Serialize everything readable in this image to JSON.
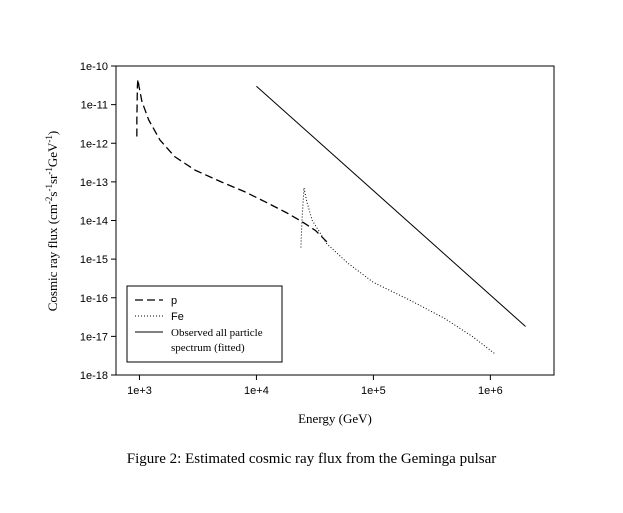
{
  "chart_data": {
    "type": "line",
    "title": "",
    "xlabel": "Energy (GeV)",
    "ylabel_parts": [
      "Cosmic ray flux (cm",
      "-2",
      "s",
      "-1",
      "sr",
      "-1",
      "GeV",
      "-1",
      ")"
    ],
    "xscale": "log",
    "yscale": "log",
    "xlim": [
      630,
      3500000
    ],
    "ylim": [
      1e-18,
      1e-10
    ],
    "x_ticks": [
      {
        "value": 1000,
        "label": "1e+3"
      },
      {
        "value": 10000,
        "label": "1e+4"
      },
      {
        "value": 100000,
        "label": "1e+5"
      },
      {
        "value": 1000000,
        "label": "1e+6"
      }
    ],
    "y_ticks": [
      {
        "value": 1e-10,
        "label": "1e-10"
      },
      {
        "value": 1e-11,
        "label": "1e-11"
      },
      {
        "value": 1e-12,
        "label": "1e-12"
      },
      {
        "value": 1e-13,
        "label": "1e-13"
      },
      {
        "value": 1e-14,
        "label": "1e-14"
      },
      {
        "value": 1e-15,
        "label": "1e-15"
      },
      {
        "value": 1e-16,
        "label": "1e-16"
      },
      {
        "value": 1e-17,
        "label": "1e-17"
      },
      {
        "value": 1e-18,
        "label": "1e-18"
      }
    ],
    "legend_position": "bottom-left",
    "series": [
      {
        "name": "p",
        "style": "dashed",
        "points": [
          [
            950,
            1.5e-12
          ],
          [
            950,
            4e-12
          ],
          [
            960,
            3e-11
          ],
          [
            970,
            4.5e-11
          ],
          [
            990,
            3e-11
          ],
          [
            1050,
            1.2e-11
          ],
          [
            1200,
            4e-12
          ],
          [
            1500,
            1.2e-12
          ],
          [
            2000,
            4.5e-13
          ],
          [
            3000,
            2e-13
          ],
          [
            5000,
            1e-13
          ],
          [
            8000,
            5.5e-14
          ],
          [
            12000,
            3e-14
          ],
          [
            18000,
            1.6e-14
          ],
          [
            25000,
            9e-15
          ],
          [
            32000,
            5.5e-15
          ],
          [
            40000,
            2.8e-15
          ]
        ]
      },
      {
        "name": "Fe",
        "style": "dotted",
        "points": [
          [
            24000,
            2e-15
          ],
          [
            24500,
            1e-14
          ],
          [
            25500,
            7e-14
          ],
          [
            27000,
            3e-14
          ],
          [
            30000,
            1e-14
          ],
          [
            40000,
            2.5e-15
          ],
          [
            60000,
            8e-16
          ],
          [
            100000,
            2.5e-16
          ],
          [
            200000,
            9e-17
          ],
          [
            400000,
            3e-17
          ],
          [
            700000,
            1e-17
          ],
          [
            1100000,
            3.5e-18
          ]
        ]
      },
      {
        "name": "Observed all particle spectrum (fitted)",
        "style": "solid",
        "legend_lines": [
          "Observed all particle",
          "spectrum (fitted)"
        ],
        "points": [
          [
            10000,
            3e-11
          ],
          [
            2000000,
            1.8e-17
          ]
        ]
      }
    ]
  },
  "caption": "Figure 2: Estimated cosmic ray flux from the Geminga pulsar"
}
